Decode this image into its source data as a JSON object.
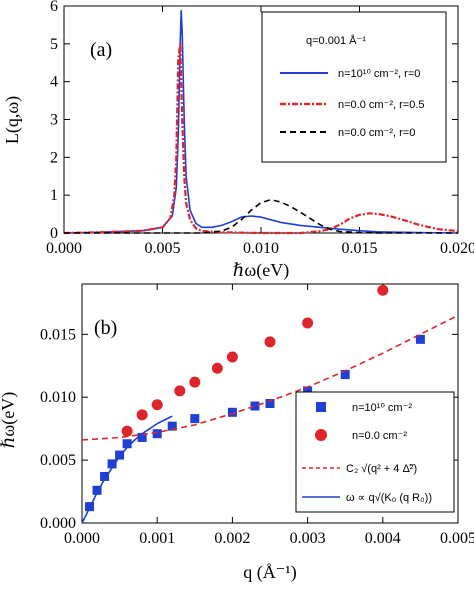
{
  "colors": {
    "blue": "#1f3fd6",
    "red": "#e0242b",
    "black": "#000000",
    "frame": "#000000"
  },
  "chart_data": [
    {
      "type": "line",
      "panel_label": "(a)",
      "xlabel": "ℏω(eV)",
      "ylabel": "L(q,ω)",
      "xlim": [
        0.0,
        0.02
      ],
      "ylim": [
        0,
        6
      ],
      "x_ticks": [
        "0.000",
        "0.005",
        "0.010",
        "0.015",
        "0.020"
      ],
      "x_tick_values": [
        0.0,
        0.005,
        0.01,
        0.015,
        0.02
      ],
      "y_ticks": [
        "0",
        "1",
        "2",
        "3",
        "4",
        "5",
        "6"
      ],
      "y_tick_values": [
        0,
        1,
        2,
        3,
        4,
        5,
        6
      ],
      "legend_title": "q=0.001 Å⁻¹",
      "legend_position": "top-right",
      "series": [
        {
          "name": "n=10¹⁰ cm⁻², r=0",
          "color": "#1f3fd6",
          "style": "solid",
          "x": [
            0.0,
            0.002,
            0.004,
            0.005,
            0.0055,
            0.0057,
            0.0058,
            0.0059,
            0.00595,
            0.006,
            0.0061,
            0.0062,
            0.0064,
            0.0067,
            0.007,
            0.0075,
            0.008,
            0.0085,
            0.009,
            0.0095,
            0.01,
            0.0105,
            0.011,
            0.012,
            0.013,
            0.014,
            0.015,
            0.016,
            0.018,
            0.02
          ],
          "y": [
            0.0,
            0.02,
            0.06,
            0.15,
            0.45,
            1.2,
            2.6,
            5.0,
            5.88,
            5.3,
            3.0,
            1.5,
            0.6,
            0.25,
            0.15,
            0.15,
            0.2,
            0.3,
            0.42,
            0.45,
            0.42,
            0.35,
            0.28,
            0.2,
            0.15,
            0.1,
            0.06,
            0.03,
            0.01,
            0.0
          ]
        },
        {
          "name": "n=0.0 cm⁻², r=0.5",
          "color": "#e0242b",
          "style": "dash-dot",
          "x": [
            0.0,
            0.002,
            0.004,
            0.005,
            0.0054,
            0.0056,
            0.0057,
            0.0058,
            0.0059,
            0.006,
            0.0061,
            0.0062,
            0.0064,
            0.0067,
            0.007,
            0.008,
            0.009,
            0.01,
            0.011,
            0.012,
            0.013,
            0.0135,
            0.014,
            0.0145,
            0.015,
            0.0155,
            0.016,
            0.0165,
            0.017,
            0.018,
            0.019,
            0.02
          ],
          "y": [
            0.0,
            0.02,
            0.06,
            0.15,
            0.4,
            1.0,
            2.0,
            4.6,
            5.0,
            3.0,
            1.5,
            0.8,
            0.35,
            0.12,
            0.05,
            0.02,
            0.01,
            0.0,
            0.0,
            0.0,
            0.05,
            0.1,
            0.22,
            0.38,
            0.48,
            0.52,
            0.5,
            0.45,
            0.38,
            0.22,
            0.1,
            0.05
          ]
        },
        {
          "name": "n=0.0 cm⁻², r=0",
          "color": "#000000",
          "style": "dashed",
          "x": [
            0.0,
            0.004,
            0.006,
            0.007,
            0.008,
            0.0085,
            0.009,
            0.0095,
            0.01,
            0.0105,
            0.011,
            0.0115,
            0.012,
            0.0125,
            0.013,
            0.0135,
            0.014,
            0.015,
            0.016,
            0.018,
            0.02
          ],
          "y": [
            0.0,
            0.0,
            0.0,
            0.0,
            0.05,
            0.15,
            0.35,
            0.6,
            0.8,
            0.88,
            0.82,
            0.7,
            0.55,
            0.38,
            0.22,
            0.1,
            0.04,
            0.01,
            0.0,
            0.0,
            0.0
          ]
        }
      ]
    },
    {
      "type": "scatter",
      "panel_label": "(b)",
      "xlabel": "q (Å⁻¹)",
      "ylabel": "ℏω(eV)",
      "xlim": [
        0.0,
        0.005
      ],
      "ylim": [
        0.0,
        0.019
      ],
      "x_ticks": [
        "0.000",
        "0.001",
        "0.002",
        "0.003",
        "0.004",
        "0.005"
      ],
      "x_tick_values": [
        0.0,
        0.001,
        0.002,
        0.003,
        0.004,
        0.005
      ],
      "y_ticks": [
        "0.000",
        "0.005",
        "0.010",
        "0.015"
      ],
      "y_tick_values": [
        0.0,
        0.005,
        0.01,
        0.015
      ],
      "legend_position": "bottom-right",
      "series": [
        {
          "name": "n=10¹⁰ cm⁻²",
          "kind": "points",
          "marker": "square",
          "color": "#1f3fd6",
          "x": [
            0.0001,
            0.0002,
            0.0003,
            0.0004,
            0.0005,
            0.0006,
            0.0008,
            0.001,
            0.0012,
            0.0015,
            0.002,
            0.0023,
            0.0025,
            0.003,
            0.0035,
            0.0045
          ],
          "y": [
            0.0013,
            0.0026,
            0.0037,
            0.0047,
            0.0054,
            0.0063,
            0.0068,
            0.0071,
            0.0077,
            0.0083,
            0.0088,
            0.0093,
            0.0095,
            0.0105,
            0.0118,
            0.0146
          ]
        },
        {
          "name": "n=0.0 cm⁻²",
          "kind": "points",
          "marker": "circle",
          "color": "#e0242b",
          "x": [
            0.0006,
            0.0008,
            0.001,
            0.0013,
            0.0015,
            0.0018,
            0.002,
            0.0025,
            0.003,
            0.004
          ],
          "y": [
            0.0073,
            0.0086,
            0.0094,
            0.0105,
            0.0112,
            0.0123,
            0.0132,
            0.0144,
            0.0159,
            0.0185
          ]
        },
        {
          "name": "C₂ √(q² + 4 Δ̃²)",
          "kind": "line",
          "style": "dashed",
          "color": "#e0242b",
          "x": [
            0.0,
            0.0005,
            0.001,
            0.0015,
            0.002,
            0.0025,
            0.003,
            0.0035,
            0.004,
            0.0045,
            0.005
          ],
          "y": [
            0.0066,
            0.0068,
            0.0072,
            0.0078,
            0.0087,
            0.0097,
            0.0108,
            0.0121,
            0.0135,
            0.015,
            0.0165
          ]
        },
        {
          "name": "ω ∝ q√(K₀ (q R₀))",
          "kind": "line",
          "style": "solid",
          "color": "#1f3fd6",
          "x": [
            0.0,
            5e-05,
            0.0001,
            0.0002,
            0.0003,
            0.0004,
            0.0005,
            0.0006,
            0.0007,
            0.0008,
            0.0009,
            0.001,
            0.0011,
            0.0012
          ],
          "y": [
            0.0,
            0.0006,
            0.0012,
            0.0024,
            0.0035,
            0.0044,
            0.0053,
            0.006,
            0.0066,
            0.0071,
            0.0075,
            0.0079,
            0.0082,
            0.0085
          ]
        }
      ]
    }
  ]
}
